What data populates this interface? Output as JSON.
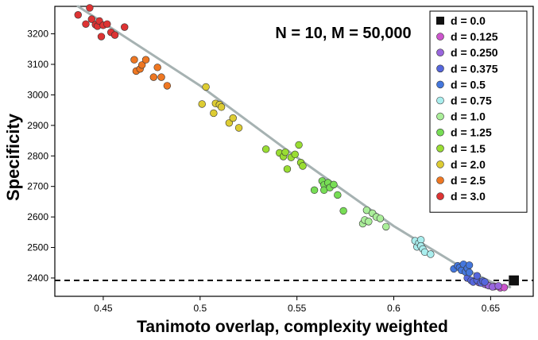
{
  "chart_data": {
    "type": "scatter",
    "xlabel": "Tanimoto overlap, complexity weighted",
    "ylabel": "Specificity",
    "xlim": [
      0.425,
      0.672
    ],
    "ylim": [
      2340,
      3290
    ],
    "xticks": [
      0.45,
      0.5,
      0.55,
      0.6,
      0.65
    ],
    "xtick_labels": [
      "0.45",
      "0.5",
      "0.55",
      "0.6",
      "0.65"
    ],
    "yticks": [
      2400,
      2500,
      2600,
      2700,
      2800,
      2900,
      3000,
      3100,
      3200
    ],
    "ytick_labels": [
      "2400",
      "2500",
      "2600",
      "2700",
      "2800",
      "2900",
      "3000",
      "3100",
      "3200"
    ],
    "grid": false,
    "legend_position": "top-right",
    "annotation": "N = 10, M = 50,000",
    "reference_line": {
      "y": 2392,
      "style": "dashed",
      "color": "#000000"
    },
    "fit_line": {
      "color": "#a6b2b2",
      "points": [
        [
          0.437,
          3290
        ],
        [
          0.5,
          3030
        ],
        [
          0.55,
          2795
        ],
        [
          0.6,
          2570
        ],
        [
          0.635,
          2435
        ],
        [
          0.652,
          2382
        ],
        [
          0.66,
          2370
        ]
      ]
    },
    "series": [
      {
        "name": "d = 0.0",
        "marker": "square",
        "color": "#111111",
        "points": [
          [
            0.662,
            2392
          ]
        ]
      },
      {
        "name": "d = 0.125",
        "marker": "circle",
        "color": "#cc55cc",
        "points": [
          [
            0.648,
            2378
          ],
          [
            0.652,
            2372
          ],
          [
            0.655,
            2368
          ],
          [
            0.657,
            2369
          ]
        ]
      },
      {
        "name": "d = 0.250",
        "marker": "circle",
        "color": "#9966dd",
        "points": [
          [
            0.644,
            2385
          ],
          [
            0.647,
            2380
          ],
          [
            0.649,
            2375
          ],
          [
            0.651,
            2371
          ],
          [
            0.654,
            2374
          ]
        ]
      },
      {
        "name": "d = 0.375",
        "marker": "circle",
        "color": "#5566dd",
        "points": [
          [
            0.638,
            2400
          ],
          [
            0.64,
            2392
          ],
          [
            0.641,
            2387
          ],
          [
            0.643,
            2393
          ],
          [
            0.643,
            2407
          ],
          [
            0.645,
            2384
          ],
          [
            0.646,
            2390
          ],
          [
            0.647,
            2387
          ]
        ]
      },
      {
        "name": "d = 0.5",
        "marker": "circle",
        "color": "#4477dd",
        "points": [
          [
            0.631,
            2430
          ],
          [
            0.633,
            2440
          ],
          [
            0.634,
            2434
          ],
          [
            0.635,
            2425
          ],
          [
            0.636,
            2445
          ],
          [
            0.637,
            2420
          ],
          [
            0.638,
            2432
          ],
          [
            0.639,
            2418
          ],
          [
            0.639,
            2442
          ]
        ]
      },
      {
        "name": "d = 0.75",
        "marker": "circle",
        "color": "#aaeeee",
        "points": [
          [
            0.611,
            2522
          ],
          [
            0.612,
            2502
          ],
          [
            0.613,
            2515
          ],
          [
            0.614,
            2525
          ],
          [
            0.614,
            2505
          ],
          [
            0.615,
            2495
          ],
          [
            0.616,
            2485
          ],
          [
            0.619,
            2478
          ]
        ]
      },
      {
        "name": "d = 1.0",
        "marker": "circle",
        "color": "#aaee99",
        "points": [
          [
            0.584,
            2578
          ],
          [
            0.585,
            2590
          ],
          [
            0.586,
            2622
          ],
          [
            0.587,
            2585
          ],
          [
            0.589,
            2612
          ],
          [
            0.591,
            2600
          ],
          [
            0.593,
            2595
          ],
          [
            0.596,
            2568
          ]
        ]
      },
      {
        "name": "d = 1.25",
        "marker": "circle",
        "color": "#77dd55",
        "points": [
          [
            0.559,
            2688
          ],
          [
            0.563,
            2718
          ],
          [
            0.564,
            2705
          ],
          [
            0.564,
            2688
          ],
          [
            0.566,
            2712
          ],
          [
            0.567,
            2696
          ],
          [
            0.569,
            2706
          ],
          [
            0.571,
            2672
          ],
          [
            0.574,
            2620
          ]
        ]
      },
      {
        "name": "d = 1.5",
        "marker": "circle",
        "color": "#99dd33",
        "points": [
          [
            0.534,
            2822
          ],
          [
            0.541,
            2810
          ],
          [
            0.543,
            2798
          ],
          [
            0.544,
            2812
          ],
          [
            0.545,
            2757
          ],
          [
            0.547,
            2795
          ],
          [
            0.549,
            2805
          ],
          [
            0.551,
            2836
          ],
          [
            0.552,
            2778
          ],
          [
            0.553,
            2767
          ]
        ]
      },
      {
        "name": "d = 2.0",
        "marker": "circle",
        "color": "#ddcc33",
        "points": [
          [
            0.501,
            2970
          ],
          [
            0.503,
            3026
          ],
          [
            0.507,
            2940
          ],
          [
            0.508,
            2972
          ],
          [
            0.51,
            2968
          ],
          [
            0.511,
            2960
          ],
          [
            0.515,
            2908
          ],
          [
            0.517,
            2924
          ],
          [
            0.52,
            2892
          ]
        ]
      },
      {
        "name": "d = 2.5",
        "marker": "circle",
        "color": "#ee7722",
        "points": [
          [
            0.466,
            3115
          ],
          [
            0.467,
            3078
          ],
          [
            0.469,
            3085
          ],
          [
            0.47,
            3098
          ],
          [
            0.472,
            3115
          ],
          [
            0.476,
            3058
          ],
          [
            0.478,
            3090
          ],
          [
            0.48,
            3058
          ],
          [
            0.483,
            3030
          ]
        ]
      },
      {
        "name": "d = 3.0",
        "marker": "circle",
        "color": "#dd3333",
        "points": [
          [
            0.437,
            3262
          ],
          [
            0.441,
            3232
          ],
          [
            0.443,
            3285
          ],
          [
            0.444,
            3248
          ],
          [
            0.446,
            3230
          ],
          [
            0.447,
            3225
          ],
          [
            0.448,
            3242
          ],
          [
            0.449,
            3191
          ],
          [
            0.45,
            3228
          ],
          [
            0.452,
            3232
          ],
          [
            0.454,
            3205
          ],
          [
            0.456,
            3196
          ],
          [
            0.461,
            3222
          ]
        ]
      }
    ]
  }
}
